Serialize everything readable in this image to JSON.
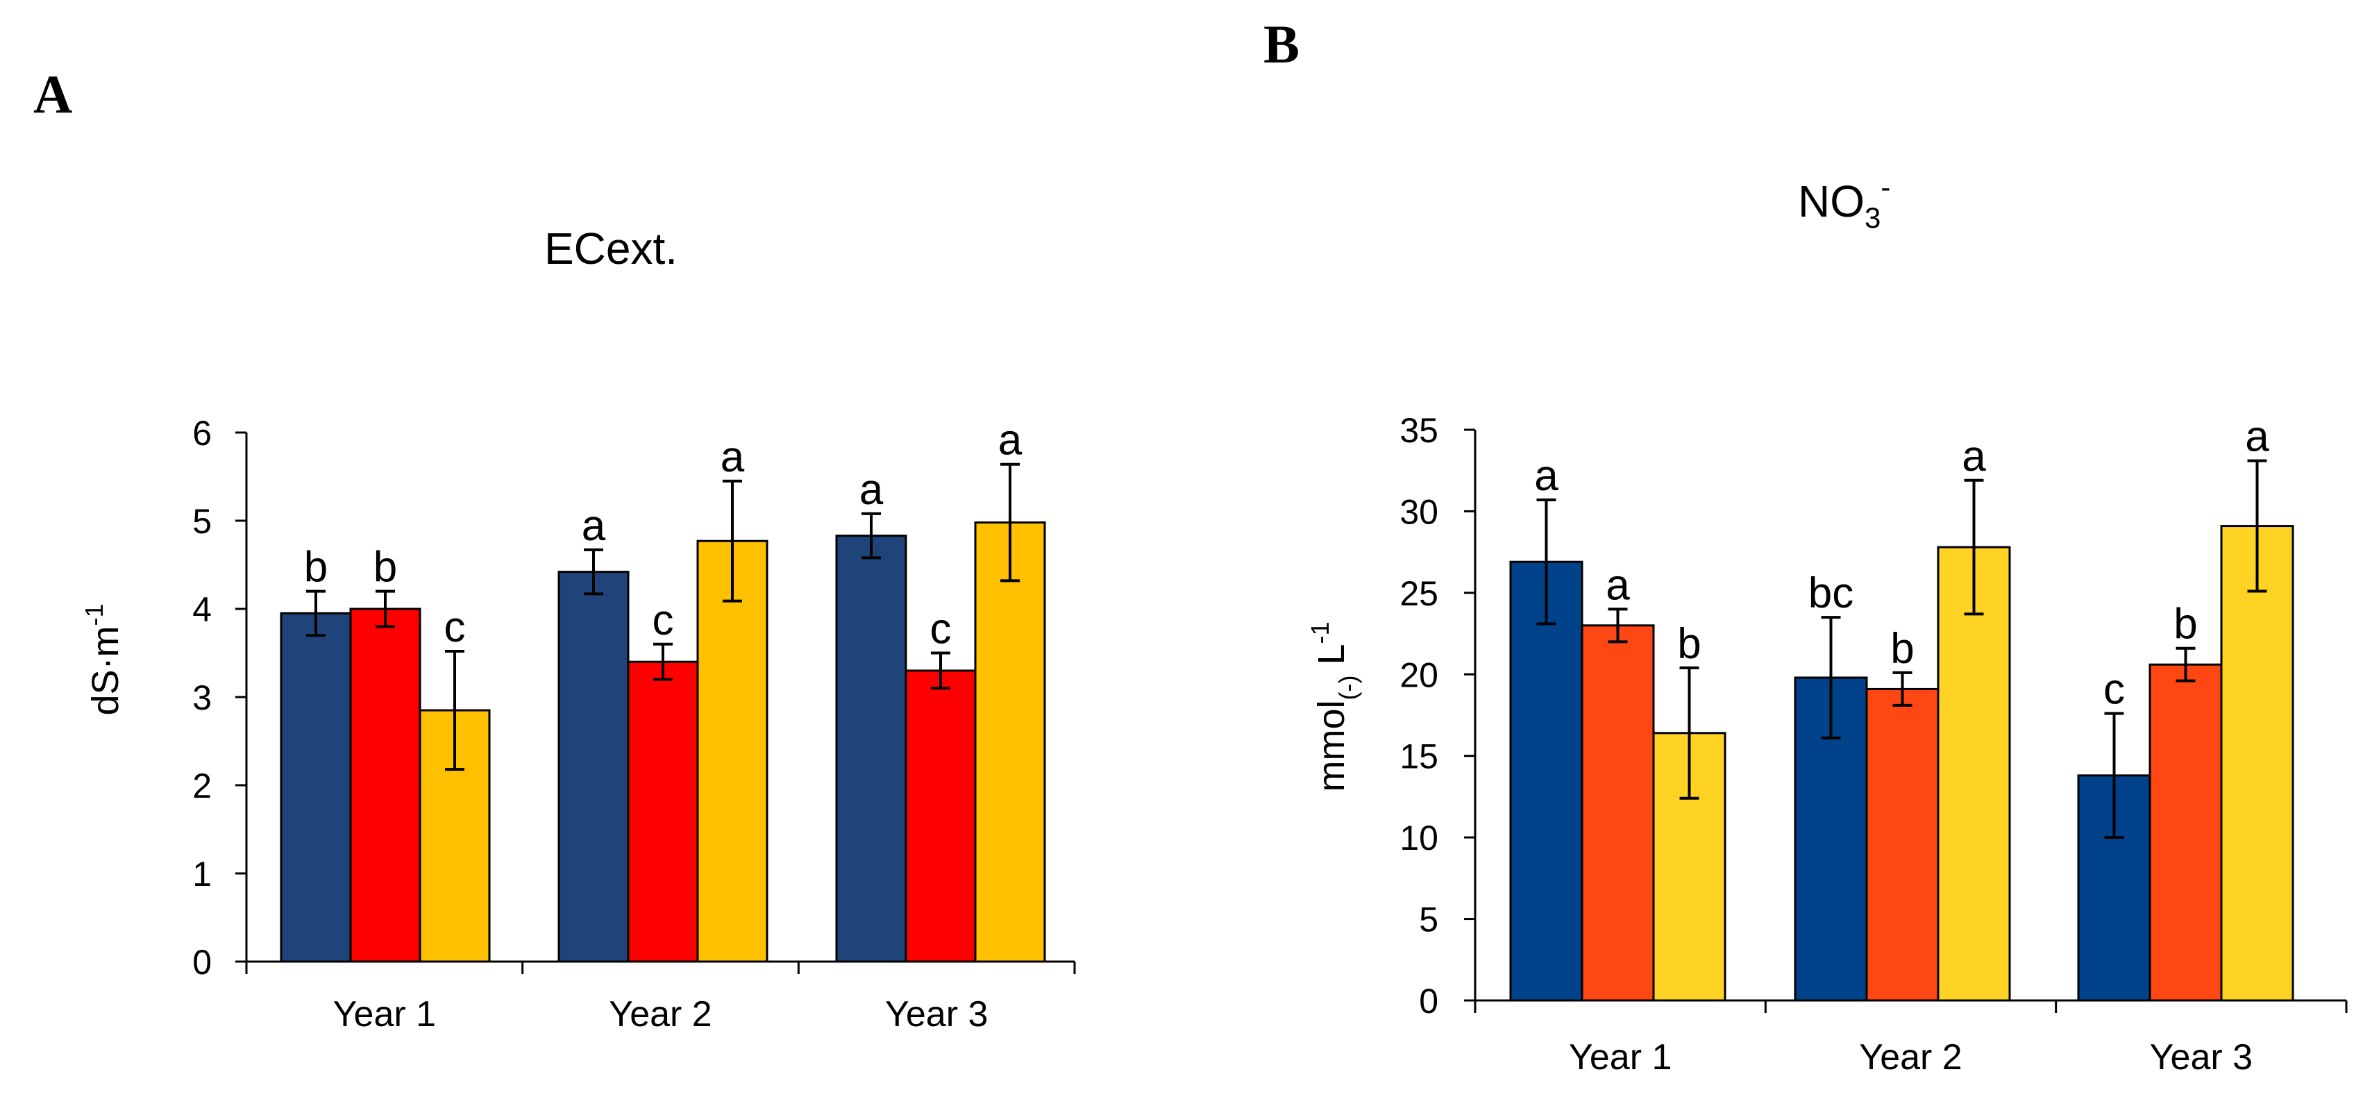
{
  "figure": {
    "panels": [
      "A",
      "B"
    ]
  },
  "chart_data": [
    {
      "panel": "A",
      "type": "bar",
      "title": "ECext.",
      "xlabel": "",
      "ylabel": "dS·m",
      "ylabel_sup": "-1",
      "ylim": [
        0,
        6
      ],
      "yticks": [
        0,
        1,
        2,
        3,
        4,
        5,
        6
      ],
      "categories": [
        "Year 1",
        "Year 2",
        "Year 3"
      ],
      "series": [
        {
          "color": "#1f4479",
          "values": [
            3.95,
            4.42,
            4.83
          ],
          "errors": [
            0.25,
            0.25,
            0.25
          ],
          "letters": [
            "b",
            "a",
            "a"
          ]
        },
        {
          "color": "#ff0000",
          "values": [
            4.0,
            3.4,
            3.3
          ],
          "errors": [
            0.2,
            0.2,
            0.2
          ],
          "letters": [
            "b",
            "c",
            "c"
          ]
        },
        {
          "color": "#ffc000",
          "values": [
            2.85,
            4.77,
            4.98
          ],
          "errors": [
            0.67,
            0.68,
            0.66
          ],
          "letters": [
            "c",
            "a",
            "a"
          ]
        }
      ]
    },
    {
      "panel": "B",
      "type": "bar",
      "title": "NO",
      "title_sub": "3",
      "title_sup": "-",
      "xlabel": "",
      "ylabel": "mmol",
      "ylabel_sub": "(-)",
      "ylabel_rest": " L",
      "ylabel_sup": "-1",
      "ylim": [
        0,
        35
      ],
      "yticks": [
        0,
        5,
        10,
        15,
        20,
        25,
        30,
        35
      ],
      "categories": [
        "Year 1",
        "Year 2",
        "Year 3"
      ],
      "series": [
        {
          "color": "#00438a",
          "values": [
            26.9,
            19.8,
            13.8
          ],
          "errors": [
            3.8,
            3.7,
            3.8
          ],
          "letters": [
            "a",
            "bc",
            "c"
          ]
        },
        {
          "color": "#ff4713",
          "values": [
            23.0,
            19.1,
            20.6
          ],
          "errors": [
            1.0,
            1.0,
            1.0
          ],
          "letters": [
            "a",
            "b",
            "b"
          ]
        },
        {
          "color": "#ffd324",
          "values": [
            16.4,
            27.8,
            29.1
          ],
          "errors": [
            4.0,
            4.1,
            4.0
          ],
          "letters": [
            "b",
            "a",
            "a"
          ]
        }
      ]
    }
  ]
}
